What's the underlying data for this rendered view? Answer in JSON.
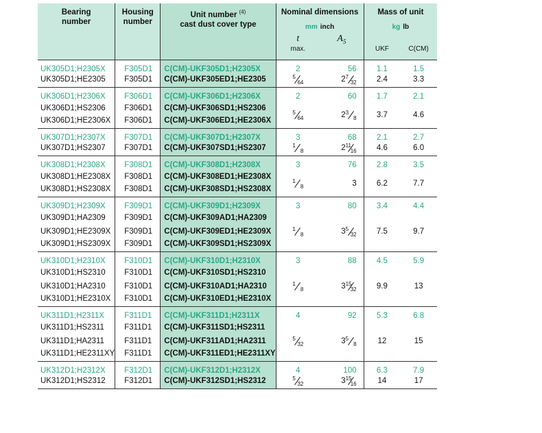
{
  "header": {
    "bearing": "Bearing number",
    "housing": "Housing number",
    "unit": "Unit number",
    "unit_note": "(4)",
    "unit_sub": "cast dust cover type",
    "dims": "Nominal dimensions",
    "dims_mm": "mm",
    "dims_inch": "inch",
    "t": "t",
    "t_sub": "max.",
    "a": "A",
    "a_sub": "5",
    "mass": "Mass of unit",
    "kg": "kg",
    "lb": "lb",
    "ukf": "UKF",
    "ccm": "C(CM)"
  },
  "groups": [
    {
      "rows": [
        [
          "UK305D1;H2305X",
          "F305D1",
          "C(CM)-UKF305D1;H2305X"
        ],
        [
          "UK305D1;HE2305",
          "F305D1",
          "C(CM)-UKF305ED1;HE2305"
        ]
      ],
      "mm": {
        "t": "2",
        "a": "56",
        "ukf": "1.1",
        "ccm": "1.5"
      },
      "inch": {
        "t": {
          "num": "5",
          "den": "64"
        },
        "a": {
          "whole": "2",
          "num": "7",
          "den": "32"
        },
        "ukf": "2.4",
        "ccm": "3.3"
      }
    },
    {
      "rows": [
        [
          "UK306D1;H2306X",
          "F306D1",
          "C(CM)-UKF306D1;H2306X"
        ],
        [
          "UK306D1;HS2306",
          "F306D1",
          "C(CM)-UKF306SD1;HS2306"
        ],
        [
          "UK306D1;HE2306X",
          "F306D1",
          "C(CM)-UKF306ED1;HE2306X"
        ]
      ],
      "mm": {
        "t": "2",
        "a": "60",
        "ukf": "1.7",
        "ccm": "2.1"
      },
      "inch": {
        "t": {
          "num": "5",
          "den": "64"
        },
        "a": {
          "whole": "2",
          "num": "3",
          "den": "8"
        },
        "ukf": "3.7",
        "ccm": "4.6"
      }
    },
    {
      "rows": [
        [
          "UK307D1;H2307X",
          "F307D1",
          "C(CM)-UKF307D1;H2307X"
        ],
        [
          "UK307D1;HS2307",
          "F307D1",
          "C(CM)-UKF307SD1;HS2307"
        ]
      ],
      "mm": {
        "t": "3",
        "a": "68",
        "ukf": "2.1",
        "ccm": "2.7"
      },
      "inch": {
        "t": {
          "num": "1",
          "den": "8"
        },
        "a": {
          "whole": "2",
          "num": "11",
          "den": "16"
        },
        "ukf": "4.6",
        "ccm": "6.0"
      }
    },
    {
      "rows": [
        [
          "UK308D1;H2308X",
          "F308D1",
          "C(CM)-UKF308D1;H2308X"
        ],
        [
          "UK308D1;HE2308X",
          "F308D1",
          "C(CM)-UKF308ED1;HE2308X"
        ],
        [
          "UK308D1;HS2308X",
          "F308D1",
          "C(CM)-UKF308SD1;HS2308X"
        ]
      ],
      "mm": {
        "t": "3",
        "a": "76",
        "ukf": "2.8",
        "ccm": "3.5"
      },
      "inch": {
        "t": {
          "num": "1",
          "den": "8"
        },
        "a": {
          "whole": "3"
        },
        "ukf": "6.2",
        "ccm": "7.7"
      }
    },
    {
      "rows": [
        [
          "UK309D1;H2309X",
          "F309D1",
          "C(CM)-UKF309D1;H2309X"
        ],
        [
          "UK309D1;HA2309",
          "F309D1",
          "C(CM)-UKF309AD1;HA2309"
        ],
        [
          "UK309D1;HE2309X",
          "F309D1",
          "C(CM)-UKF309ED1;HE2309X"
        ],
        [
          "UK309D1;HS2309X",
          "F309D1",
          "C(CM)-UKF309SD1;HS2309X"
        ]
      ],
      "mm": {
        "t": "3",
        "a": "80",
        "ukf": "3.4",
        "ccm": "4.4"
      },
      "inch": {
        "t": {
          "num": "1",
          "den": "8"
        },
        "a": {
          "whole": "3",
          "num": "5",
          "den": "32"
        },
        "ukf": "7.5",
        "ccm": "9.7"
      }
    },
    {
      "rows": [
        [
          "UK310D1;H2310X",
          "F310D1",
          "C(CM)-UKF310D1;H2310X"
        ],
        [
          "UK310D1;HS2310",
          "F310D1",
          "C(CM)-UKF310SD1;HS2310"
        ],
        [
          "UK310D1;HA2310",
          "F310D1",
          "C(CM)-UKF310AD1;HA2310"
        ],
        [
          "UK310D1;HE2310X",
          "F310D1",
          "C(CM)-UKF310ED1;HE2310X"
        ]
      ],
      "mm": {
        "t": "3",
        "a": "88",
        "ukf": "4.5",
        "ccm": "5.9"
      },
      "inch": {
        "t": {
          "num": "1",
          "den": "8"
        },
        "a": {
          "whole": "3",
          "num": "15",
          "den": "32"
        },
        "ukf": "9.9",
        "ccm": "13"
      }
    },
    {
      "rows": [
        [
          "UK311D1;H2311X",
          "F311D1",
          "C(CM)-UKF311D1;H2311X"
        ],
        [
          "UK311D1;HS2311",
          "F311D1",
          "C(CM)-UKF311SD1;HS2311"
        ],
        [
          "UK311D1;HA2311",
          "F311D1",
          "C(CM)-UKF311AD1;HA2311"
        ],
        [
          "UK311D1;HE2311XY",
          "F311D1",
          "C(CM)-UKF311ED1;HE2311XY"
        ]
      ],
      "mm": {
        "t": "4",
        "a": "92",
        "ukf": "5.3",
        "ccm": "6.8"
      },
      "inch": {
        "t": {
          "num": "5",
          "den": "32"
        },
        "a": {
          "whole": "3",
          "num": "5",
          "den": "8"
        },
        "ukf": "12",
        "ccm": "15"
      }
    },
    {
      "rows": [
        [
          "UK312D1;H2312X",
          "F312D1",
          "C(CM)-UKF312D1;H2312X"
        ],
        [
          "UK312D1;HS2312",
          "F312D1",
          "C(CM)-UKF312SD1;HS2312"
        ]
      ],
      "mm": {
        "t": "4",
        "a": "100",
        "ukf": "6.3",
        "ccm": "7.9"
      },
      "inch": {
        "t": {
          "num": "5",
          "den": "32"
        },
        "a": {
          "whole": "3",
          "num": "15",
          "den": "16"
        },
        "ukf": "14",
        "ccm": "17"
      }
    }
  ]
}
